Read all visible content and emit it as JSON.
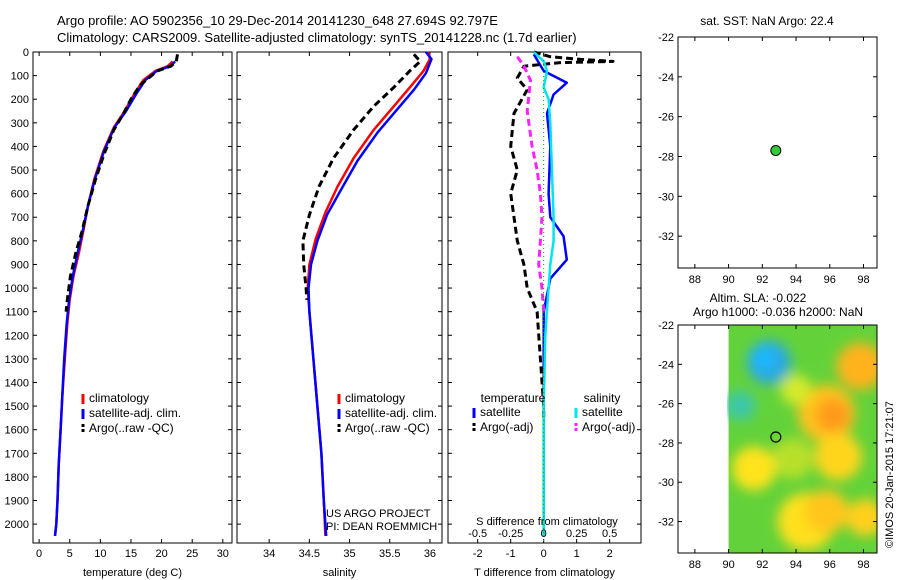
{
  "header": {
    "line1": "Argo profile: AO 5902356_10 29-Dec-2014 20141230_648 27.694S 92.797E",
    "line2": "Climatology: CARS2009. Satellite-adjusted climatology: synTS_20141228.nc (1.7d earlier)"
  },
  "side_text": "©IMOS 20-Jan-2015 17:21:07",
  "credit": {
    "line1": "US ARGO PROJECT",
    "line2": "PI: DEAN ROEMMICH"
  },
  "colors": {
    "red": "#ff0000",
    "blue": "#0000ff",
    "black": "#000000",
    "cyan": "#00e5ee",
    "magenta": "#ff22ff",
    "green": "#33cc33"
  },
  "chart_data": [
    {
      "id": "temperature",
      "type": "line",
      "xlabel": "temperature (deg C)",
      "ylim": [
        2080,
        0
      ],
      "xlim": [
        -1,
        31.5
      ],
      "xticks": [
        "0",
        "5",
        "10",
        "15",
        "20",
        "25",
        "30"
      ],
      "yticks": [
        "0",
        "100",
        "200",
        "300",
        "400",
        "500",
        "600",
        "700",
        "800",
        "900",
        "1000",
        "1100",
        "1200",
        "1300",
        "1400",
        "1500",
        "1600",
        "1700",
        "1800",
        "1900",
        "2000"
      ],
      "legend": [
        "climatology",
        "satellite-adj. clim.",
        "Argo(..raw -QC)"
      ],
      "series": [
        {
          "name": "climatology",
          "color": "red",
          "dash": false,
          "points": [
            [
              21.8,
              40
            ],
            [
              21,
              60
            ],
            [
              19,
              80
            ],
            [
              17,
              120
            ],
            [
              15.5,
              180
            ],
            [
              14,
              250
            ],
            [
              12.2,
              320
            ],
            [
              10.5,
              420
            ],
            [
              9,
              540
            ],
            [
              8,
              650
            ],
            [
              7.2,
              760
            ],
            [
              6.5,
              850
            ],
            [
              5.6,
              950
            ],
            [
              5,
              1050
            ],
            [
              4.6,
              1150
            ],
            [
              4.2,
              1300
            ],
            [
              3.8,
              1450
            ],
            [
              3.5,
              1600
            ],
            [
              3.2,
              1750
            ],
            [
              3,
              1900
            ],
            [
              2.8,
              2000
            ],
            [
              2.6,
              2050
            ]
          ]
        },
        {
          "name": "satellite-adj. clim.",
          "color": "blue",
          "dash": false,
          "points": [
            [
              22.2,
              40
            ],
            [
              21.4,
              60
            ],
            [
              19.2,
              80
            ],
            [
              17.3,
              120
            ],
            [
              15.8,
              180
            ],
            [
              14.2,
              250
            ],
            [
              12.3,
              320
            ],
            [
              10.6,
              420
            ],
            [
              9.1,
              540
            ],
            [
              8,
              650
            ],
            [
              7.1,
              760
            ],
            [
              6.3,
              850
            ],
            [
              5.5,
              950
            ],
            [
              4.9,
              1050
            ],
            [
              4.5,
              1150
            ],
            [
              4.1,
              1300
            ],
            [
              3.8,
              1450
            ],
            [
              3.5,
              1600
            ],
            [
              3.2,
              1750
            ],
            [
              3,
              1900
            ],
            [
              2.8,
              2000
            ],
            [
              2.6,
              2050
            ]
          ]
        },
        {
          "name": "Argo(..raw -QC)",
          "color": "black",
          "dash": true,
          "points": [
            [
              22.6,
              10
            ],
            [
              22.4,
              40
            ],
            [
              21.5,
              60
            ],
            [
              19.3,
              80
            ],
            [
              16.5,
              140
            ],
            [
              15,
              200
            ],
            [
              13.8,
              260
            ],
            [
              12.2,
              330
            ],
            [
              10.5,
              440
            ],
            [
              9.2,
              540
            ],
            [
              8,
              650
            ],
            [
              7,
              760
            ],
            [
              6,
              850
            ],
            [
              5.1,
              950
            ],
            [
              4.6,
              1050
            ],
            [
              4.4,
              1100
            ]
          ]
        }
      ]
    },
    {
      "id": "salinity",
      "type": "line",
      "xlabel": "salinity",
      "ylim": [
        2080,
        0
      ],
      "xlim": [
        33.6,
        36.15
      ],
      "xticks": [
        "34",
        "34.5",
        "35",
        "35.5",
        "36"
      ],
      "legend": [
        "climatology",
        "satellite-adj. clim.",
        "Argo(..raw -QC)"
      ],
      "series": [
        {
          "name": "climatology",
          "color": "red",
          "dash": false,
          "points": [
            [
              35.98,
              0
            ],
            [
              36,
              30
            ],
            [
              35.92,
              80
            ],
            [
              35.75,
              150
            ],
            [
              35.55,
              230
            ],
            [
              35.3,
              330
            ],
            [
              35.05,
              450
            ],
            [
              34.85,
              570
            ],
            [
              34.7,
              680
            ],
            [
              34.58,
              790
            ],
            [
              34.5,
              900
            ],
            [
              34.48,
              1000
            ],
            [
              34.5,
              1100
            ],
            [
              34.55,
              1300
            ],
            [
              34.6,
              1500
            ],
            [
              34.65,
              1700
            ],
            [
              34.68,
              1900
            ],
            [
              34.7,
              2050
            ]
          ]
        },
        {
          "name": "satellite-adj. clim.",
          "color": "blue",
          "dash": false,
          "points": [
            [
              35.95,
              0
            ],
            [
              36.02,
              30
            ],
            [
              35.95,
              90
            ],
            [
              35.8,
              160
            ],
            [
              35.6,
              240
            ],
            [
              35.35,
              340
            ],
            [
              35.1,
              460
            ],
            [
              34.9,
              580
            ],
            [
              34.72,
              690
            ],
            [
              34.6,
              800
            ],
            [
              34.52,
              900
            ],
            [
              34.49,
              1000
            ],
            [
              34.5,
              1100
            ],
            [
              34.55,
              1300
            ],
            [
              34.6,
              1500
            ],
            [
              34.65,
              1700
            ],
            [
              34.68,
              1900
            ],
            [
              34.71,
              2050
            ]
          ]
        },
        {
          "name": "Argo(..raw -QC)",
          "color": "black",
          "dash": true,
          "points": [
            [
              35.8,
              10
            ],
            [
              35.88,
              40
            ],
            [
              35.75,
              80
            ],
            [
              35.55,
              150
            ],
            [
              35.3,
              230
            ],
            [
              35.05,
              330
            ],
            [
              34.8,
              450
            ],
            [
              34.62,
              570
            ],
            [
              34.5,
              690
            ],
            [
              34.42,
              800
            ],
            [
              34.43,
              900
            ],
            [
              34.46,
              1000
            ],
            [
              34.47,
              1050
            ]
          ]
        }
      ]
    },
    {
      "id": "difference",
      "type": "line",
      "xlabel": "T difference from climatology",
      "top_xlabel": "S difference from climatology",
      "ylim": [
        2080,
        0
      ],
      "xlim": [
        -2.9,
        2.95
      ],
      "xticks": [
        "-2",
        "-1",
        "0",
        "1",
        "2"
      ],
      "top_xticks": [
        "-0.5",
        "-0.25",
        "0",
        "0.25",
        "0.5"
      ],
      "legend_headers": [
        "temperature",
        "salinity"
      ],
      "legend": [
        "satellite",
        "Argo(-adj)",
        "satellite",
        "Argo(-adj)"
      ],
      "series": [
        {
          "name": "satellite",
          "quantity": "temperature",
          "color": "blue",
          "dash": false,
          "points": [
            [
              -0.3,
              10
            ],
            [
              0,
              80
            ],
            [
              0.7,
              130
            ],
            [
              0.3,
              180
            ],
            [
              0.1,
              260
            ],
            [
              0.2,
              400
            ],
            [
              0.15,
              600
            ],
            [
              0.2,
              700
            ],
            [
              0.6,
              780
            ],
            [
              0.7,
              880
            ],
            [
              0.2,
              960
            ],
            [
              0,
              1100
            ],
            [
              0,
              2050
            ]
          ]
        },
        {
          "name": "Argo(-adj)",
          "quantity": "temperature",
          "color": "black",
          "dash": true,
          "points": [
            [
              -0.3,
              0
            ],
            [
              0.2,
              20
            ],
            [
              1,
              30
            ],
            [
              2.1,
              40
            ],
            [
              0.5,
              45
            ],
            [
              -0.6,
              60
            ],
            [
              -0.8,
              110
            ],
            [
              -0.5,
              160
            ],
            [
              -0.9,
              260
            ],
            [
              -1,
              400
            ],
            [
              -0.8,
              500
            ],
            [
              -1,
              600
            ],
            [
              -0.9,
              700
            ],
            [
              -0.8,
              800
            ],
            [
              -0.6,
              900
            ],
            [
              -0.5,
              1000
            ],
            [
              -0.2,
              1100
            ],
            [
              -0.1,
              1300
            ],
            [
              0,
              1500
            ],
            [
              0,
              1550
            ]
          ]
        },
        {
          "name": "satellite",
          "quantity": "salinity",
          "color": "cyan",
          "dash": false,
          "points": [
            [
              -0.3,
              0
            ],
            [
              0,
              40
            ],
            [
              0.1,
              80
            ],
            [
              0,
              150
            ],
            [
              0.15,
              200
            ],
            [
              0.2,
              300
            ],
            [
              0.25,
              500
            ],
            [
              0.3,
              700
            ],
            [
              0.3,
              800
            ],
            [
              0.2,
              900
            ],
            [
              0.15,
              1000
            ],
            [
              0.05,
              1200
            ],
            [
              0,
              1500
            ],
            [
              0,
              2050
            ]
          ]
        },
        {
          "name": "Argo(-adj)",
          "quantity": "salinity",
          "color": "magenta",
          "dash": true,
          "points": [
            [
              -0.8,
              20
            ],
            [
              -0.6,
              60
            ],
            [
              -0.4,
              120
            ],
            [
              -0.5,
              250
            ],
            [
              -0.35,
              400
            ],
            [
              -0.2,
              500
            ],
            [
              -0.1,
              600
            ],
            [
              -0.05,
              700
            ],
            [
              -0.1,
              800
            ],
            [
              -0.15,
              900
            ],
            [
              -0.05,
              1000
            ],
            [
              0,
              1100
            ]
          ]
        }
      ]
    },
    {
      "id": "sst_map",
      "type": "scatter",
      "title": "sat. SST: NaN Argo: 22.4",
      "xlim": [
        87,
        98.8
      ],
      "ylim": [
        -33.6,
        -22
      ],
      "xticks": [
        "88",
        "90",
        "92",
        "94",
        "96",
        "98"
      ],
      "yticks": [
        "-22",
        "-24",
        "-26",
        "-28",
        "-30",
        "-32"
      ],
      "points": [
        {
          "x": 92.8,
          "y": -27.7,
          "color": "green"
        }
      ]
    },
    {
      "id": "sla_map",
      "type": "heatmap",
      "title_line1": "Altim. SLA: -0.022",
      "title_line2": "Argo h1000: -0.036 h2000: NaN",
      "xlim": [
        87,
        98.8
      ],
      "ylim": [
        -33.6,
        -22
      ],
      "xticks": [
        "88",
        "90",
        "92",
        "94",
        "96",
        "98"
      ],
      "yticks": [
        "-22",
        "-24",
        "-26",
        "-28",
        "-30",
        "-32"
      ],
      "data_extent_x": [
        90,
        98.8
      ],
      "blobs": [
        {
          "x": 92.4,
          "y": -23.9,
          "r": 1.3,
          "color": "#2aa9e0"
        },
        {
          "x": 92.1,
          "y": -23.7,
          "r": 0.7,
          "color": "#1fb7ff"
        },
        {
          "x": 90.7,
          "y": -26.1,
          "r": 0.9,
          "color": "#3ec8a8"
        },
        {
          "x": 95.8,
          "y": -26.5,
          "r": 1.7,
          "color": "#ffc21a"
        },
        {
          "x": 96.2,
          "y": -26.6,
          "r": 1.0,
          "color": "#ff9a1a"
        },
        {
          "x": 97.8,
          "y": -24.1,
          "r": 1.4,
          "color": "#ffb21a"
        },
        {
          "x": 93.8,
          "y": -28.8,
          "r": 1.2,
          "color": "#b8e02a"
        },
        {
          "x": 96.5,
          "y": -28.7,
          "r": 1.4,
          "color": "#ffd51a"
        },
        {
          "x": 91.5,
          "y": -29.3,
          "r": 1.3,
          "color": "#ffe31a"
        },
        {
          "x": 94.6,
          "y": -32,
          "r": 1.7,
          "color": "#ffe01a"
        },
        {
          "x": 95.8,
          "y": -31.5,
          "r": 1.3,
          "color": "#ffc61a"
        },
        {
          "x": 98.1,
          "y": -31.8,
          "r": 1.1,
          "color": "#ffd01a"
        },
        {
          "x": 94,
          "y": -25.3,
          "r": 0.9,
          "color": "#d6ea2a"
        }
      ],
      "points": [
        {
          "x": 92.8,
          "y": -27.7,
          "color": "none"
        }
      ]
    }
  ]
}
